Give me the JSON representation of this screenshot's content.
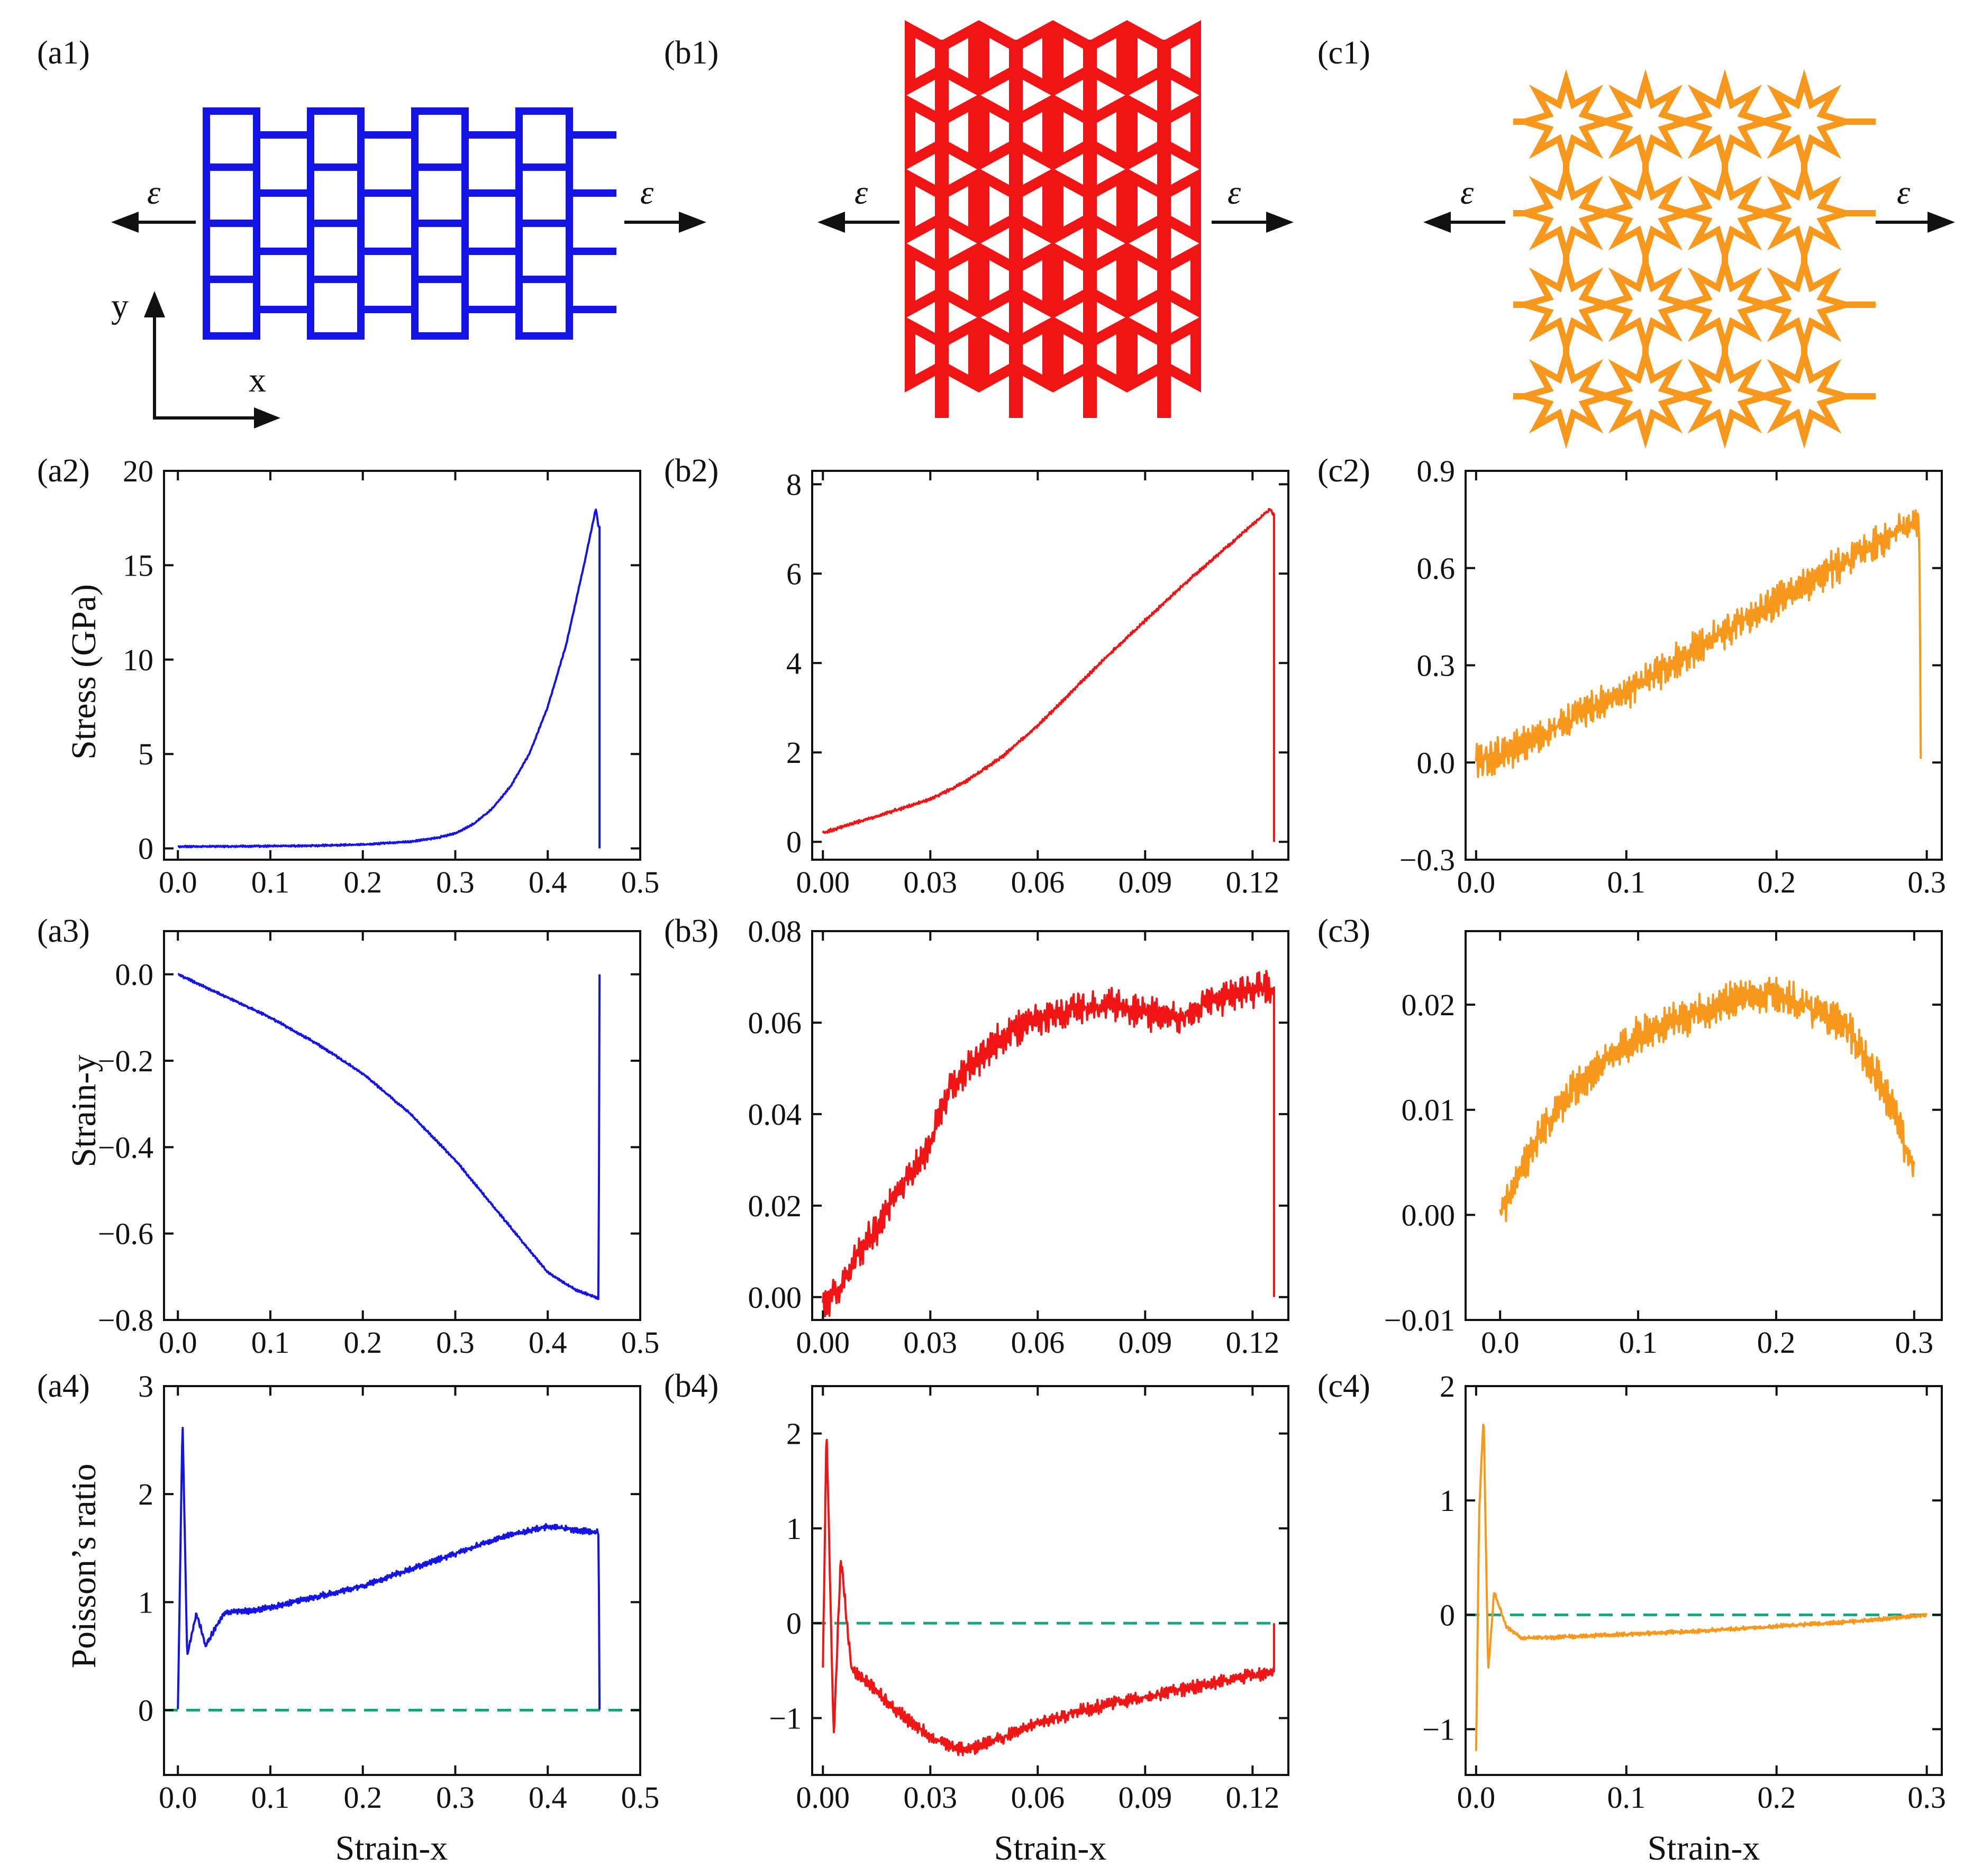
{
  "figure": {
    "colors": {
      "a": "#1414e6",
      "b": "#f01414",
      "c": "#f7981d",
      "zero_line": "#1aa37a",
      "axis": "#111111"
    },
    "schematics": [
      {
        "id": "a1",
        "label": "(a1)",
        "color": "#1414e6",
        "lattice": "rectangular re-entrant grid",
        "strain_symbol": "ε",
        "axis_y": "y",
        "axis_x": "x"
      },
      {
        "id": "b1",
        "label": "(b1)",
        "color": "#f01414",
        "lattice": "bow-tie re-entrant honeycomb",
        "strain_symbol": "ε"
      },
      {
        "id": "c1",
        "label": "(c1)",
        "color": "#f7981d",
        "lattice": "star-shaped grid",
        "strain_symbol": "ε"
      }
    ],
    "row_titles": {
      "row2": "Stress (GPa)",
      "row3": "Strain-y",
      "row4": "Poisson’s ratio"
    },
    "x_title": "Strain-x"
  },
  "chart_data": [
    {
      "id": "a2",
      "label": "(a2)",
      "type": "line",
      "color": "#1414e6",
      "xlim": [
        -0.015,
        0.5
      ],
      "ylim": [
        -0.6,
        20
      ],
      "xticks": [
        0.0,
        0.1,
        0.2,
        0.3,
        0.4,
        0.5
      ],
      "xtick_labels": [
        "0.0",
        "0.1",
        "0.2",
        "0.3",
        "0.4",
        "0.5"
      ],
      "yticks": [
        0,
        5,
        10,
        15,
        20
      ],
      "ytick_labels": [
        "0",
        "5",
        "10",
        "15",
        "20"
      ],
      "ylabel": "Stress (GPa)",
      "xlabel": "",
      "x": [
        0.0,
        0.05,
        0.1,
        0.15,
        0.2,
        0.25,
        0.28,
        0.3,
        0.32,
        0.34,
        0.36,
        0.38,
        0.4,
        0.42,
        0.44,
        0.452,
        0.455,
        0.456,
        0.456
      ],
      "y": [
        0.1,
        0.1,
        0.12,
        0.15,
        0.2,
        0.35,
        0.55,
        0.8,
        1.3,
        2.1,
        3.3,
        5.0,
        7.5,
        10.8,
        15.2,
        18.0,
        17.0,
        17.0,
        0.0
      ],
      "noise": 0.05
    },
    {
      "id": "b2",
      "label": "(b2)",
      "type": "line",
      "color": "#f01414",
      "xlim": [
        -0.003,
        0.13
      ],
      "ylim": [
        -0.4,
        8.3
      ],
      "xticks": [
        0.0,
        0.03,
        0.06,
        0.09,
        0.12
      ],
      "xtick_labels": [
        "0.00",
        "0.03",
        "0.06",
        "0.09",
        "0.12"
      ],
      "yticks": [
        0,
        2,
        4,
        6,
        8
      ],
      "ytick_labels": [
        "0",
        "2",
        "4",
        "6",
        "8"
      ],
      "ylabel": "",
      "xlabel": "",
      "x": [
        0.0,
        0.01,
        0.02,
        0.03,
        0.04,
        0.05,
        0.06,
        0.07,
        0.08,
        0.09,
        0.1,
        0.11,
        0.12,
        0.125,
        0.126,
        0.126
      ],
      "y": [
        0.2,
        0.45,
        0.7,
        0.95,
        1.35,
        1.9,
        2.6,
        3.4,
        4.2,
        4.95,
        5.7,
        6.4,
        7.1,
        7.45,
        7.3,
        0.0
      ],
      "noise": 0.04
    },
    {
      "id": "c2",
      "label": "(c2)",
      "type": "line",
      "color": "#f7981d",
      "xlim": [
        -0.007,
        0.31
      ],
      "ylim": [
        -0.3,
        0.9
      ],
      "xticks": [
        0.0,
        0.1,
        0.2,
        0.3
      ],
      "xtick_labels": [
        "0.0",
        "0.1",
        "0.2",
        "0.3"
      ],
      "yticks": [
        -0.3,
        0.0,
        0.3,
        0.6,
        0.9
      ],
      "ytick_labels": [
        "−0.3",
        "0.0",
        "0.3",
        "0.6",
        "0.9"
      ],
      "ylabel": "",
      "xlabel": "",
      "x": [
        0.0,
        0.02,
        0.05,
        0.1,
        0.15,
        0.2,
        0.25,
        0.28,
        0.29,
        0.295,
        0.296
      ],
      "y": [
        0.0,
        0.03,
        0.1,
        0.22,
        0.36,
        0.5,
        0.63,
        0.71,
        0.74,
        0.74,
        0.0
      ],
      "noise": 0.06
    },
    {
      "id": "a3",
      "label": "(a3)",
      "type": "line",
      "color": "#1414e6",
      "xlim": [
        -0.015,
        0.5
      ],
      "ylim": [
        -0.8,
        0.1
      ],
      "xticks": [
        0.0,
        0.1,
        0.2,
        0.3,
        0.4,
        0.5
      ],
      "xtick_labels": [
        "0.0",
        "0.1",
        "0.2",
        "0.3",
        "0.4",
        "0.5"
      ],
      "yticks": [
        -0.8,
        -0.6,
        -0.4,
        -0.2,
        0.0
      ],
      "ytick_labels": [
        "−0.8",
        "−0.6",
        "−0.4",
        "−0.2",
        "0.0"
      ],
      "ylabel": "Strain-y",
      "xlabel": "",
      "x": [
        0.0,
        0.05,
        0.1,
        0.15,
        0.2,
        0.25,
        0.3,
        0.35,
        0.4,
        0.43,
        0.455,
        0.456
      ],
      "y": [
        0.0,
        -0.05,
        -0.1,
        -0.16,
        -0.23,
        -0.32,
        -0.43,
        -0.56,
        -0.69,
        -0.73,
        -0.75,
        0.0
      ],
      "noise": 0.003
    },
    {
      "id": "b3",
      "label": "(b3)",
      "type": "line",
      "color": "#f01414",
      "xlim": [
        -0.003,
        0.13
      ],
      "ylim": [
        -0.005,
        0.08
      ],
      "xticks": [
        0.0,
        0.03,
        0.06,
        0.09,
        0.12
      ],
      "xtick_labels": [
        "0.00",
        "0.03",
        "0.06",
        "0.09",
        "0.12"
      ],
      "yticks": [
        0.0,
        0.02,
        0.04,
        0.06,
        0.08
      ],
      "ytick_labels": [
        "0.00",
        "0.02",
        "0.04",
        "0.06",
        "0.08"
      ],
      "ylabel": "",
      "xlabel": "",
      "x": [
        0.0,
        0.005,
        0.01,
        0.015,
        0.02,
        0.025,
        0.03,
        0.035,
        0.04,
        0.045,
        0.05,
        0.06,
        0.07,
        0.08,
        0.09,
        0.1,
        0.11,
        0.12,
        0.125,
        0.126,
        0.126
      ],
      "y": [
        -0.002,
        0.002,
        0.01,
        0.015,
        0.022,
        0.027,
        0.034,
        0.045,
        0.05,
        0.053,
        0.057,
        0.061,
        0.063,
        0.064,
        0.062,
        0.061,
        0.065,
        0.067,
        0.068,
        0.065,
        0.0
      ],
      "noise": 0.004
    },
    {
      "id": "c3",
      "label": "(c3)",
      "type": "line",
      "color": "#f7981d",
      "xlim": [
        -0.025,
        0.32
      ],
      "ylim": [
        -0.01,
        0.027
      ],
      "xticks": [
        0.0,
        0.1,
        0.2,
        0.3
      ],
      "xtick_labels": [
        "0.0",
        "0.1",
        "0.2",
        "0.3"
      ],
      "yticks": [
        -0.01,
        0.0,
        0.01,
        0.02
      ],
      "ytick_labels": [
        "−0.01",
        "0.00",
        "0.01",
        "0.02"
      ],
      "ylabel": "",
      "xlabel": "",
      "x": [
        0.0,
        0.01,
        0.03,
        0.06,
        0.1,
        0.14,
        0.18,
        0.2,
        0.22,
        0.25,
        0.27,
        0.285,
        0.3
      ],
      "y": [
        0.0,
        0.003,
        0.008,
        0.013,
        0.017,
        0.019,
        0.021,
        0.021,
        0.02,
        0.018,
        0.014,
        0.01,
        0.004
      ],
      "noise": 0.002
    },
    {
      "id": "a4",
      "label": "(a4)",
      "type": "line",
      "color": "#1414e6",
      "xlim": [
        -0.015,
        0.5
      ],
      "ylim": [
        -0.6,
        3.0
      ],
      "xticks": [
        0.0,
        0.1,
        0.2,
        0.3,
        0.4,
        0.5
      ],
      "xtick_labels": [
        "0.0",
        "0.1",
        "0.2",
        "0.3",
        "0.4",
        "0.5"
      ],
      "yticks": [
        0,
        1,
        2,
        3
      ],
      "ytick_labels": [
        "0",
        "1",
        "2",
        "3"
      ],
      "ylabel": "Poisson’s ratio",
      "xlabel": "Strain-x",
      "x": [
        0.0,
        0.005,
        0.01,
        0.02,
        0.03,
        0.05,
        0.08,
        0.1,
        0.15,
        0.2,
        0.25,
        0.3,
        0.35,
        0.4,
        0.45,
        0.455,
        0.456
      ],
      "y": [
        0.0,
        2.7,
        0.5,
        0.9,
        0.6,
        0.9,
        0.92,
        0.95,
        1.05,
        1.15,
        1.3,
        1.45,
        1.6,
        1.7,
        1.65,
        1.65,
        0.0
      ],
      "noise": 0.03,
      "reference_line": 0
    },
    {
      "id": "b4",
      "label": "(b4)",
      "type": "line",
      "color": "#f01414",
      "xlim": [
        -0.003,
        0.13
      ],
      "ylim": [
        -1.6,
        2.5
      ],
      "xticks": [
        0.0,
        0.03,
        0.06,
        0.09,
        0.12
      ],
      "xtick_labels": [
        "0.00",
        "0.03",
        "0.06",
        "0.09",
        "0.12"
      ],
      "yticks": [
        -1,
        0,
        1,
        2
      ],
      "ytick_labels": [
        "−1",
        "0",
        "1",
        "2"
      ],
      "ylabel": "",
      "xlabel": "Strain-x",
      "x": [
        0.0,
        0.001,
        0.003,
        0.005,
        0.008,
        0.012,
        0.02,
        0.03,
        0.04,
        0.05,
        0.06,
        0.08,
        0.1,
        0.12,
        0.125,
        0.126,
        0.126
      ],
      "y": [
        -0.5,
        2.1,
        -1.2,
        0.7,
        -0.5,
        -0.6,
        -0.9,
        -1.2,
        -1.35,
        -1.2,
        -1.05,
        -0.85,
        -0.7,
        -0.55,
        -0.52,
        -0.5,
        0.0
      ],
      "noise": 0.08,
      "reference_line": 0
    },
    {
      "id": "c4",
      "label": "(c4)",
      "type": "line",
      "color": "#f7981d",
      "xlim": [
        -0.007,
        0.31
      ],
      "ylim": [
        -1.4,
        2.0
      ],
      "xticks": [
        0.0,
        0.1,
        0.2,
        0.3
      ],
      "xtick_labels": [
        "0.0",
        "0.1",
        "0.2",
        "0.3"
      ],
      "yticks": [
        -1,
        0,
        1,
        2
      ],
      "ytick_labels": [
        "−1",
        "0",
        "1",
        "2"
      ],
      "ylabel": "",
      "xlabel": "Strain-x",
      "x": [
        0.0,
        0.002,
        0.005,
        0.008,
        0.012,
        0.02,
        0.03,
        0.05,
        0.08,
        0.1,
        0.15,
        0.2,
        0.25,
        0.3
      ],
      "y": [
        -1.2,
        0.9,
        1.75,
        -0.5,
        0.2,
        -0.1,
        -0.2,
        -0.2,
        -0.18,
        -0.17,
        -0.14,
        -0.1,
        -0.06,
        0.0
      ],
      "noise": 0.02,
      "reference_line": 0
    }
  ]
}
